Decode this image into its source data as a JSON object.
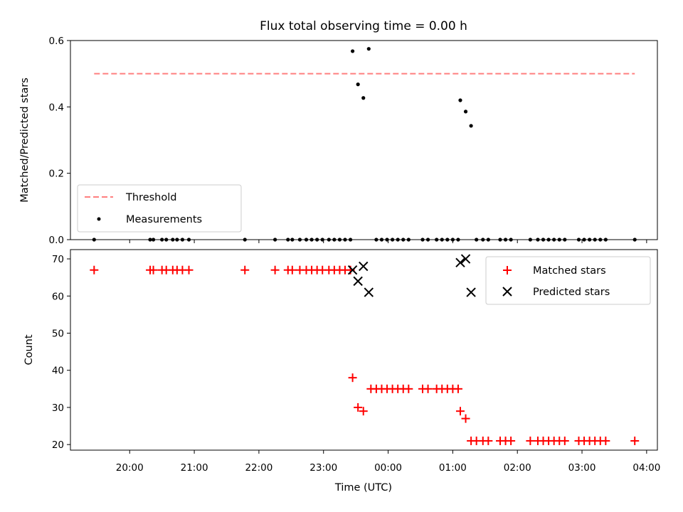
{
  "title": "Flux total observing time = 0.00 h",
  "chart_data": [
    {
      "type": "scatter",
      "ylabel": "Matched/Predicted stars",
      "xlim": [
        "19:05",
        "04:10"
      ],
      "ylim": [
        0,
        0.6
      ],
      "yticks": [
        "0.0",
        "0.2",
        "0.4",
        "0.6"
      ],
      "legend_position": "lower-left",
      "threshold": {
        "name": "Threshold",
        "value": 0.5,
        "x_range": [
          "19:27",
          "03:49"
        ],
        "color": "#ff7f7f",
        "style": "dashed"
      },
      "series": [
        {
          "name": "Measurements",
          "color": "#000000",
          "marker": "dot",
          "points": [
            [
              "19:27",
              0
            ],
            [
              "20:19",
              0
            ],
            [
              "20:22",
              0
            ],
            [
              "20:30",
              0
            ],
            [
              "20:34",
              0
            ],
            [
              "20:40",
              0
            ],
            [
              "20:44",
              0
            ],
            [
              "20:49",
              0
            ],
            [
              "20:55",
              0
            ],
            [
              "21:47",
              0
            ],
            [
              "22:15",
              0
            ],
            [
              "22:27",
              0
            ],
            [
              "22:31",
              0
            ],
            [
              "22:38",
              0
            ],
            [
              "22:44",
              0
            ],
            [
              "22:49",
              0
            ],
            [
              "22:54",
              0
            ],
            [
              "22:59",
              0
            ],
            [
              "23:05",
              0
            ],
            [
              "23:10",
              0
            ],
            [
              "23:15",
              0
            ],
            [
              "23:20",
              0
            ],
            [
              "23:25",
              0
            ],
            [
              "23:27",
              0.568
            ],
            [
              "23:32",
              0.468
            ],
            [
              "23:37",
              0.427
            ],
            [
              "23:42",
              0.575
            ],
            [
              "23:49",
              0
            ],
            [
              "23:54",
              0
            ],
            [
              "23:59",
              0
            ],
            [
              "00:04",
              0
            ],
            [
              "00:09",
              0
            ],
            [
              "00:14",
              0
            ],
            [
              "00:19",
              0
            ],
            [
              "00:32",
              0
            ],
            [
              "00:37",
              0
            ],
            [
              "00:45",
              0
            ],
            [
              "00:50",
              0
            ],
            [
              "00:55",
              0
            ],
            [
              "01:00",
              0
            ],
            [
              "01:05",
              0
            ],
            [
              "01:07",
              0.42
            ],
            [
              "01:12",
              0.386
            ],
            [
              "01:17",
              0.343
            ],
            [
              "01:22",
              0
            ],
            [
              "01:28",
              0
            ],
            [
              "01:33",
              0
            ],
            [
              "01:44",
              0
            ],
            [
              "01:49",
              0
            ],
            [
              "01:54",
              0
            ],
            [
              "02:12",
              0
            ],
            [
              "02:19",
              0
            ],
            [
              "02:24",
              0
            ],
            [
              "02:29",
              0
            ],
            [
              "02:34",
              0
            ],
            [
              "02:39",
              0
            ],
            [
              "02:44",
              0
            ],
            [
              "02:57",
              0
            ],
            [
              "03:02",
              0
            ],
            [
              "03:07",
              0
            ],
            [
              "03:12",
              0
            ],
            [
              "03:17",
              0
            ],
            [
              "03:22",
              0
            ],
            [
              "03:49",
              0
            ]
          ]
        }
      ]
    },
    {
      "type": "scatter",
      "xlabel": "Time (UTC)",
      "ylabel": "Count",
      "xlim": [
        "19:05",
        "04:10"
      ],
      "ylim": [
        18.5,
        72.5
      ],
      "yticks": [
        "20",
        "30",
        "40",
        "50",
        "60",
        "70"
      ],
      "xticks": [
        "20:00",
        "21:00",
        "22:00",
        "23:00",
        "00:00",
        "01:00",
        "02:00",
        "03:00",
        "04:00"
      ],
      "legend_position": "upper-right",
      "series": [
        {
          "name": "Matched stars",
          "color": "#ff0000",
          "marker": "plus",
          "points": [
            [
              "19:27",
              67
            ],
            [
              "20:19",
              67
            ],
            [
              "20:22",
              67
            ],
            [
              "20:30",
              67
            ],
            [
              "20:34",
              67
            ],
            [
              "20:40",
              67
            ],
            [
              "20:44",
              67
            ],
            [
              "20:49",
              67
            ],
            [
              "20:55",
              67
            ],
            [
              "21:47",
              67
            ],
            [
              "22:15",
              67
            ],
            [
              "22:27",
              67
            ],
            [
              "22:31",
              67
            ],
            [
              "22:38",
              67
            ],
            [
              "22:44",
              67
            ],
            [
              "22:49",
              67
            ],
            [
              "22:54",
              67
            ],
            [
              "22:59",
              67
            ],
            [
              "23:05",
              67
            ],
            [
              "23:10",
              67
            ],
            [
              "23:15",
              67
            ],
            [
              "23:20",
              67
            ],
            [
              "23:25",
              67
            ],
            [
              "23:27",
              38
            ],
            [
              "23:32",
              30
            ],
            [
              "23:37",
              29
            ],
            [
              "23:44",
              35
            ],
            [
              "23:49",
              35
            ],
            [
              "23:54",
              35
            ],
            [
              "23:59",
              35
            ],
            [
              "00:04",
              35
            ],
            [
              "00:09",
              35
            ],
            [
              "00:14",
              35
            ],
            [
              "00:19",
              35
            ],
            [
              "00:32",
              35
            ],
            [
              "00:37",
              35
            ],
            [
              "00:45",
              35
            ],
            [
              "00:50",
              35
            ],
            [
              "00:55",
              35
            ],
            [
              "01:00",
              35
            ],
            [
              "01:05",
              35
            ],
            [
              "01:07",
              29
            ],
            [
              "01:12",
              27
            ],
            [
              "01:17",
              21
            ],
            [
              "01:22",
              21
            ],
            [
              "01:28",
              21
            ],
            [
              "01:33",
              21
            ],
            [
              "01:44",
              21
            ],
            [
              "01:49",
              21
            ],
            [
              "01:54",
              21
            ],
            [
              "02:12",
              21
            ],
            [
              "02:19",
              21
            ],
            [
              "02:24",
              21
            ],
            [
              "02:29",
              21
            ],
            [
              "02:34",
              21
            ],
            [
              "02:39",
              21
            ],
            [
              "02:44",
              21
            ],
            [
              "02:57",
              21
            ],
            [
              "03:02",
              21
            ],
            [
              "03:07",
              21
            ],
            [
              "03:12",
              21
            ],
            [
              "03:17",
              21
            ],
            [
              "03:22",
              21
            ],
            [
              "03:49",
              21
            ]
          ]
        },
        {
          "name": "Predicted stars",
          "color": "#000000",
          "marker": "x",
          "points": [
            [
              "23:27",
              67
            ],
            [
              "23:32",
              64
            ],
            [
              "23:37",
              68
            ],
            [
              "23:42",
              61
            ],
            [
              "01:07",
              69
            ],
            [
              "01:12",
              70
            ],
            [
              "01:17",
              61
            ]
          ]
        }
      ]
    }
  ]
}
